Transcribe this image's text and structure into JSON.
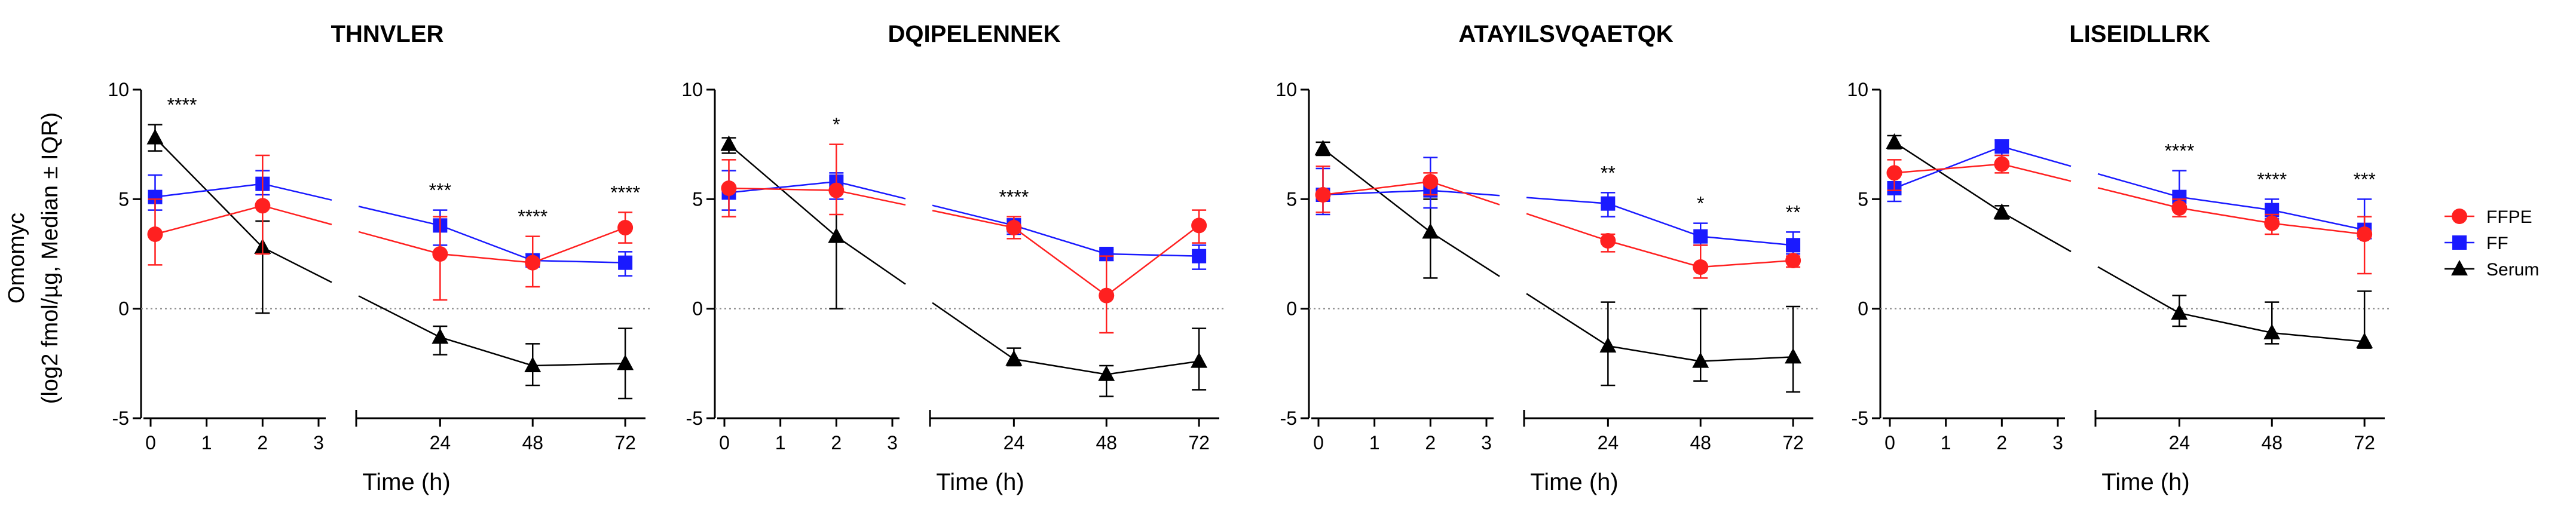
{
  "figure": {
    "ylabel_line1": "Omomyc",
    "ylabel_line2": "(log2 fmol/µg, Median ± IQR)",
    "legend": [
      {
        "name": "FFPE",
        "color": "#ff2020",
        "marker": "circle"
      },
      {
        "name": "FF",
        "color": "#1a1aff",
        "marker": "square"
      },
      {
        "name": "Serum",
        "color": "#000000",
        "marker": "triangle"
      }
    ]
  },
  "chart_data": [
    {
      "type": "line",
      "title": "THNVLER",
      "xlabel": "Time (h)",
      "ylabel": "Omomyc (log2 fmol/µg, Median ± IQR)",
      "ylim": [
        -5,
        10
      ],
      "yticks": [
        "-5",
        "0",
        "5",
        "10"
      ],
      "x_segment1": {
        "range": [
          0,
          3
        ],
        "ticks": [
          "0",
          "1",
          "2",
          "3"
        ]
      },
      "x_segment2": {
        "ticks": [
          "24",
          "48",
          "72"
        ]
      },
      "time_points": [
        "0.08",
        "2",
        "24",
        "48",
        "72"
      ],
      "series": [
        {
          "name": "FFPE",
          "values": [
            3.4,
            4.7,
            2.5,
            2.1,
            3.7
          ],
          "err_low": [
            2.0,
            2.5,
            0.4,
            1.0,
            3.0
          ],
          "err_high": [
            5.0,
            7.0,
            4.2,
            3.3,
            4.4
          ]
        },
        {
          "name": "FF",
          "values": [
            5.1,
            5.7,
            3.8,
            2.2,
            2.1
          ],
          "err_low": [
            4.5,
            5.2,
            2.9,
            2.0,
            1.5
          ],
          "err_high": [
            6.1,
            6.3,
            4.5,
            2.5,
            2.6
          ]
        },
        {
          "name": "Serum",
          "values": [
            7.8,
            2.8,
            -1.3,
            -2.6,
            -2.5
          ],
          "err_low": [
            7.2,
            -0.2,
            -2.1,
            -3.5,
            -4.1
          ],
          "err_high": [
            8.4,
            4.0,
            -0.8,
            -1.6,
            -0.9
          ]
        }
      ],
      "significance": [
        {
          "x": "0",
          "label": "****"
        },
        {
          "x": "24",
          "label": "***"
        },
        {
          "x": "48",
          "label": "****"
        },
        {
          "x": "72",
          "label": "****"
        }
      ]
    },
    {
      "type": "line",
      "title": "DQIPELENNEK",
      "xlabel": "Time (h)",
      "ylabel": "Omomyc (log2 fmol/µg, Median ± IQR)",
      "ylim": [
        -5,
        10
      ],
      "yticks": [
        "-5",
        "0",
        "5",
        "10"
      ],
      "x_segment1": {
        "range": [
          0,
          3
        ],
        "ticks": [
          "0",
          "1",
          "2",
          "3"
        ]
      },
      "x_segment2": {
        "ticks": [
          "24",
          "48",
          "72"
        ]
      },
      "time_points": [
        "0.08",
        "2",
        "24",
        "48",
        "72"
      ],
      "series": [
        {
          "name": "FFPE",
          "values": [
            5.5,
            5.4,
            3.7,
            0.6,
            3.8
          ],
          "err_low": [
            4.2,
            4.3,
            3.2,
            -1.1,
            3.0
          ],
          "err_high": [
            6.8,
            7.5,
            4.2,
            2.4,
            4.5
          ]
        },
        {
          "name": "FF",
          "values": [
            5.3,
            5.8,
            3.8,
            2.5,
            2.4
          ],
          "err_low": [
            4.5,
            5.0,
            3.4,
            2.2,
            1.8
          ],
          "err_high": [
            6.3,
            6.2,
            4.1,
            2.7,
            2.9
          ]
        },
        {
          "name": "Serum",
          "values": [
            7.5,
            3.3,
            -2.3,
            -3.0,
            -2.4
          ],
          "err_low": [
            7.1,
            0.0,
            -2.6,
            -4.0,
            -3.7
          ],
          "err_high": [
            7.8,
            5.4,
            -1.8,
            -2.6,
            -0.9
          ]
        }
      ],
      "significance": [
        {
          "x": "2",
          "label": "*"
        },
        {
          "x": "24",
          "label": "****"
        }
      ]
    },
    {
      "type": "line",
      "title": "ATAYILSVQAETQK",
      "xlabel": "Time (h)",
      "ylabel": "Omomyc (log2 fmol/µg, Median ± IQR)",
      "ylim": [
        -5,
        10
      ],
      "yticks": [
        "-5",
        "0",
        "5",
        "10"
      ],
      "x_segment1": {
        "range": [
          0,
          3
        ],
        "ticks": [
          "0",
          "1",
          "2",
          "3"
        ]
      },
      "x_segment2": {
        "ticks": [
          "24",
          "48",
          "72"
        ]
      },
      "time_points": [
        "0.08",
        "2",
        "24",
        "48",
        "72"
      ],
      "series": [
        {
          "name": "FFPE",
          "values": [
            5.2,
            5.8,
            3.1,
            1.9,
            2.2
          ],
          "err_low": [
            4.4,
            5.2,
            2.6,
            1.4,
            1.9
          ],
          "err_high": [
            6.5,
            6.2,
            3.4,
            2.9,
            2.4
          ]
        },
        {
          "name": "FF",
          "values": [
            5.2,
            5.4,
            4.8,
            3.3,
            2.9
          ],
          "err_low": [
            4.3,
            4.6,
            4.2,
            2.9,
            2.5
          ],
          "err_high": [
            6.4,
            6.9,
            5.3,
            3.9,
            3.5
          ]
        },
        {
          "name": "Serum",
          "values": [
            7.3,
            3.5,
            -1.7,
            -2.4,
            -2.2
          ],
          "err_low": [
            7.0,
            1.4,
            -3.5,
            -3.3,
            -3.8
          ],
          "err_high": [
            7.6,
            5.0,
            0.3,
            0.0,
            0.1
          ]
        }
      ],
      "significance": [
        {
          "x": "24",
          "label": "**"
        },
        {
          "x": "48",
          "label": "*"
        },
        {
          "x": "72",
          "label": "**"
        }
      ]
    },
    {
      "type": "line",
      "title": "LISEIDLLRK",
      "xlabel": "Time (h)",
      "ylabel": "Omomyc (log2 fmol/µg, Median ± IQR)",
      "ylim": [
        -5,
        10
      ],
      "yticks": [
        "-5",
        "0",
        "5",
        "10"
      ],
      "x_segment1": {
        "range": [
          0,
          3
        ],
        "ticks": [
          "0",
          "1",
          "2",
          "3"
        ]
      },
      "x_segment2": {
        "ticks": [
          "24",
          "48",
          "72"
        ]
      },
      "time_points": [
        "0.08",
        "2",
        "24",
        "48",
        "72"
      ],
      "series": [
        {
          "name": "FFPE",
          "values": [
            6.2,
            6.6,
            4.6,
            3.9,
            3.4
          ],
          "err_low": [
            5.4,
            6.2,
            4.2,
            3.4,
            1.6
          ],
          "err_high": [
            6.8,
            7.0,
            5.0,
            4.3,
            4.2
          ]
        },
        {
          "name": "FF",
          "values": [
            5.5,
            7.4,
            5.1,
            4.5,
            3.6
          ],
          "err_low": [
            4.9,
            7.0,
            4.5,
            4.1,
            3.2
          ],
          "err_high": [
            6.2,
            7.7,
            6.3,
            5.0,
            5.0
          ]
        },
        {
          "name": "Serum",
          "values": [
            7.6,
            4.4,
            -0.2,
            -1.1,
            -1.5
          ],
          "err_low": [
            7.3,
            4.1,
            -0.8,
            -1.6,
            -1.8
          ],
          "err_high": [
            7.9,
            4.7,
            0.6,
            0.3,
            0.8
          ]
        }
      ],
      "significance": [
        {
          "x": "24",
          "label": "****"
        },
        {
          "x": "48",
          "label": "****"
        },
        {
          "x": "72",
          "label": "***"
        }
      ]
    }
  ]
}
